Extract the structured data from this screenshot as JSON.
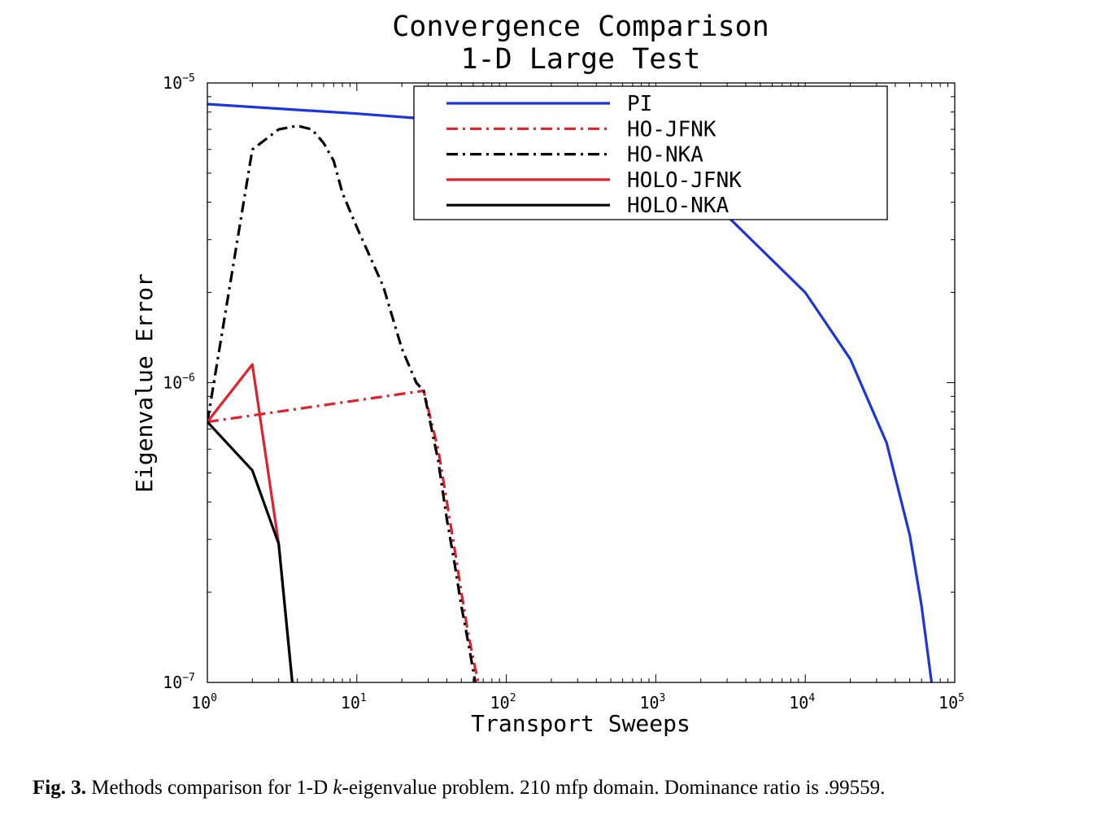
{
  "chart_data": {
    "type": "line",
    "title": "Convergence Comparison",
    "subtitle": "1-D Large Test",
    "xlabel": "Transport Sweeps",
    "ylabel": "Eigenvalue Error",
    "xscale": "log",
    "yscale": "log",
    "xlim": [
      1,
      100000
    ],
    "ylim": [
      1e-07,
      1e-05
    ],
    "x_ticks": [
      {
        "base": "10",
        "exp": "0",
        "value": 1
      },
      {
        "base": "10",
        "exp": "1",
        "value": 10
      },
      {
        "base": "10",
        "exp": "2",
        "value": 100
      },
      {
        "base": "10",
        "exp": "3",
        "value": 1000
      },
      {
        "base": "10",
        "exp": "4",
        "value": 10000
      },
      {
        "base": "10",
        "exp": "5",
        "value": 100000
      }
    ],
    "y_ticks": [
      {
        "base": "10",
        "exp": "−7",
        "value": 1e-07
      },
      {
        "base": "10",
        "exp": "−6",
        "value": 1e-06
      },
      {
        "base": "10",
        "exp": "−5",
        "value": 1e-05
      }
    ],
    "grid": false,
    "legend_position": "top-right",
    "series": [
      {
        "name": "PI",
        "color": "#1a35e0",
        "style": "solid",
        "x": [
          1,
          10,
          28,
          100,
          300,
          1000,
          3000,
          10000,
          20000,
          35000,
          50000,
          60000,
          70000
        ],
        "y": [
          8.5e-06,
          7.9e-06,
          7.6e-06,
          7e-06,
          6.2e-06,
          5e-06,
          3.6e-06,
          2e-06,
          1.2e-06,
          6.3e-07,
          3.1e-07,
          1.8e-07,
          1e-07
        ]
      },
      {
        "name": "HO-JFNK",
        "color": "#e0202a",
        "style": "dashdot",
        "x": [
          1,
          28,
          35,
          40,
          45,
          50,
          55,
          60,
          65
        ],
        "y": [
          7.4e-07,
          9.4e-07,
          6e-07,
          4e-07,
          2.8e-07,
          2e-07,
          1.5e-07,
          1.2e-07,
          1e-07
        ]
      },
      {
        "name": "HO-NKA",
        "color": "#000000",
        "style": "dashdot",
        "x": [
          1,
          2,
          3,
          4,
          5,
          6,
          7,
          8,
          10,
          15,
          20,
          25,
          28,
          35,
          40,
          45,
          50,
          55,
          60,
          62
        ],
        "y": [
          7.4e-07,
          6e-06,
          7e-06,
          7.2e-06,
          7e-06,
          6.3e-06,
          5.5e-06,
          4.3e-06,
          3.3e-06,
          2.1e-06,
          1.3e-06,
          1e-06,
          9.4e-07,
          5.5e-07,
          3.5e-07,
          2.5e-07,
          1.8e-07,
          1.4e-07,
          1.1e-07,
          1e-07
        ]
      },
      {
        "name": "HOLO-JFNK",
        "color": "#e0202a",
        "style": "solid",
        "x": [
          1,
          2,
          3,
          3.7
        ],
        "y": [
          7.4e-07,
          1.15e-06,
          2.9e-07,
          1e-07
        ]
      },
      {
        "name": "HOLO-NKA",
        "color": "#000000",
        "style": "solid",
        "x": [
          1,
          2,
          3,
          3.7
        ],
        "y": [
          7.4e-07,
          5.1e-07,
          2.9e-07,
          1e-07
        ]
      }
    ]
  },
  "caption": {
    "label": "Fig. 3.",
    "text_before": " Methods comparison for 1-D ",
    "italic": "k",
    "text_after": "-eigenvalue problem. 210 mfp domain. Dominance ratio is .99559."
  }
}
